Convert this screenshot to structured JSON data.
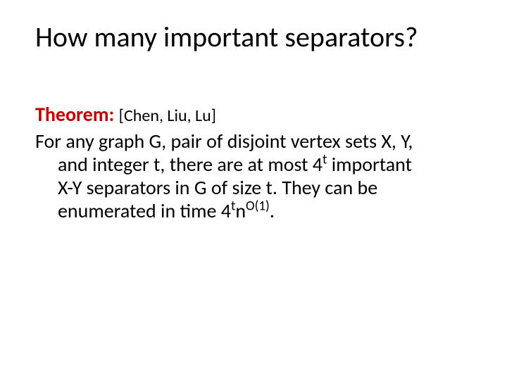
{
  "title": "How many important separators?",
  "theorem_label": "Theorem:",
  "citation": "[Chen, Liu, Lu]",
  "body_line1": "For any graph G, pair of disjoint vertex sets X, Y,",
  "body_line2_a": "and integer t, there are at most 4",
  "body_line2_sup": "t",
  "body_line2_b": " important",
  "body_line3": "X-Y separators in G of size t. They can be",
  "body_line4_a": "enumerated in time 4",
  "body_line4_sup1": "t",
  "body_line4_b": "n",
  "body_line4_sup2": "O(1)",
  "body_line4_c": "."
}
